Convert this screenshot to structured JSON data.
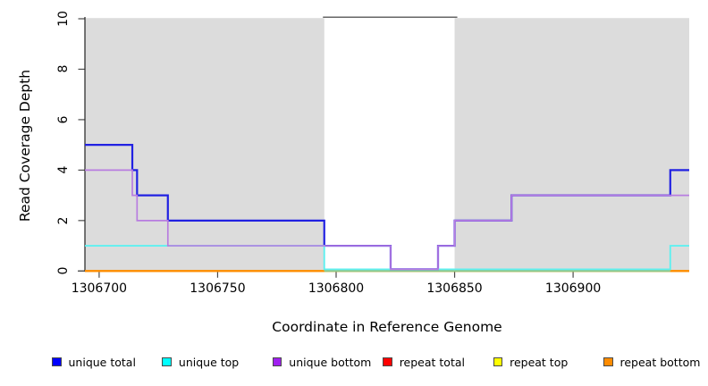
{
  "figure": {
    "background_color": "#ffffff"
  },
  "chart_data": {
    "type": "line",
    "step": true,
    "title": "",
    "xlabel": "Coordinate in Reference Genome",
    "ylabel": "Read Coverage Depth",
    "xlim": [
      1306694,
      1306949
    ],
    "ylim": [
      0,
      10
    ],
    "x_ticks": [
      1306700,
      1306750,
      1306800,
      1306850,
      1306900
    ],
    "y_ticks": [
      0,
      2,
      4,
      6,
      8,
      10
    ],
    "grid": false,
    "legend_position": "bottom",
    "shaded_regions": {
      "color": "#dcdcdc",
      "ranges": [
        [
          1306694,
          1306795
        ],
        [
          1306850,
          1306949
        ]
      ]
    },
    "frame_top_gap_segment": {
      "x_range": [
        1306795,
        1306850
      ],
      "color": "#666666"
    },
    "series": [
      {
        "name": "repeat total",
        "color": "#ff0000",
        "line_color": "#dd0000",
        "segments": [
          [
            [
              1306694,
              0
            ],
            [
              1306949,
              0
            ]
          ]
        ]
      },
      {
        "name": "repeat top",
        "color": "#ffff00",
        "line_color": "#f0f000",
        "segments": [
          [
            [
              1306694,
              0
            ],
            [
              1306949,
              0
            ]
          ]
        ]
      },
      {
        "name": "repeat bottom",
        "color": "#ff8c00",
        "line_color": "#ff8c00",
        "segments": [
          [
            [
              1306694,
              0
            ],
            [
              1306795,
              0
            ]
          ],
          [
            [
              1306941,
              0
            ],
            [
              1306949,
              0
            ]
          ]
        ]
      },
      {
        "name": "unique total",
        "color": "#0000ff",
        "line_color": "#2121e2",
        "segments": [
          [
            [
              1306694,
              5
            ],
            [
              1306714,
              5
            ],
            [
              1306714,
              4
            ],
            [
              1306716,
              4
            ],
            [
              1306716,
              3
            ],
            [
              1306729,
              3
            ],
            [
              1306729,
              2
            ],
            [
              1306795,
              2
            ],
            [
              1306795,
              1
            ],
            [
              1306823,
              1
            ],
            [
              1306823,
              0
            ],
            [
              1306843,
              0
            ],
            [
              1306843,
              1
            ],
            [
              1306850,
              1
            ],
            [
              1306850,
              2
            ],
            [
              1306874,
              2
            ],
            [
              1306874,
              3
            ],
            [
              1306941,
              3
            ],
            [
              1306941,
              4
            ],
            [
              1306949,
              4
            ]
          ]
        ]
      },
      {
        "name": "unique top",
        "color": "#00ffff",
        "line_color": "#5ff0f0",
        "segments": [
          [
            [
              1306694,
              1
            ],
            [
              1306795,
              1
            ],
            [
              1306795,
              0
            ],
            [
              1306941,
              0
            ],
            [
              1306941,
              1
            ],
            [
              1306949,
              1
            ]
          ]
        ]
      },
      {
        "name": "unique bottom",
        "color": "#a020f0",
        "line_color": "#b87de0",
        "segments": [
          [
            [
              1306694,
              4
            ],
            [
              1306714,
              4
            ],
            [
              1306714,
              3
            ],
            [
              1306716,
              3
            ],
            [
              1306716,
              2
            ],
            [
              1306729,
              2
            ],
            [
              1306729,
              1
            ],
            [
              1306823,
              1
            ],
            [
              1306823,
              0
            ],
            [
              1306843,
              0
            ],
            [
              1306843,
              1
            ],
            [
              1306850,
              1
            ],
            [
              1306850,
              2
            ],
            [
              1306874,
              2
            ],
            [
              1306874,
              3
            ],
            [
              1306949,
              3
            ]
          ]
        ]
      }
    ],
    "overlap_zero_line": {
      "color": "#8cc88c",
      "x_range": [
        1306795,
        1306941
      ],
      "value": 0
    }
  },
  "legend": {
    "items": [
      {
        "label": "unique total",
        "color": "#0000ff"
      },
      {
        "label": "unique top",
        "color": "#00ffff"
      },
      {
        "label": "unique bottom",
        "color": "#a020f0"
      },
      {
        "label": "repeat total",
        "color": "#ff0000"
      },
      {
        "label": "repeat top",
        "color": "#ffff00"
      },
      {
        "label": "repeat bottom",
        "color": "#ff8c00"
      }
    ]
  }
}
